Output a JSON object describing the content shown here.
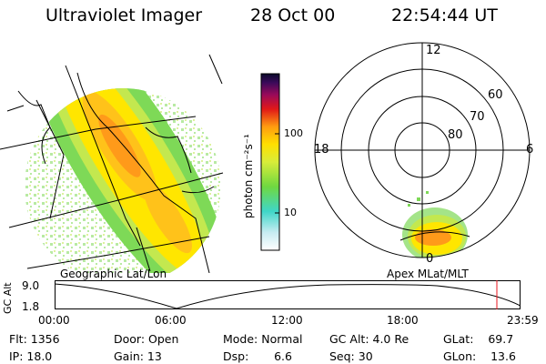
{
  "header": {
    "instrument": "Ultraviolet Imager",
    "date": "28 Oct 00",
    "time": "22:54:44 UT"
  },
  "colorbar": {
    "unit_label": "photon cm⁻²s⁻¹",
    "ticks": [
      "100",
      "10"
    ]
  },
  "maps": {
    "geo_label": "Geographic Lat/Lon",
    "apex_label": "Apex MLat/MLT",
    "polar_mlt": [
      "12",
      "18",
      "6",
      "0"
    ],
    "polar_lat": [
      "60",
      "70",
      "80"
    ]
  },
  "orbit": {
    "axis_label": "GC Alt",
    "y_ticks": [
      "9.0",
      "1.8"
    ],
    "x_ticks": [
      "00:00",
      "06:00",
      "12:00",
      "18:00",
      "23:59"
    ]
  },
  "info": {
    "flt": "Flt: 1356",
    "ip": "IP: 18.0",
    "door": "Door: Open",
    "gain": "Gain: 13",
    "mode": "Mode: Normal",
    "dsp": "Dsp:       6.6",
    "gc_alt": "GC Alt: 4.0 Re",
    "seq": "Seq: 30",
    "glat": "GLat:    69.7",
    "glon": "GLon:    13.6"
  },
  "colors": {
    "aurora_low": "#7ed957",
    "aurora_mid": "#ffe600",
    "aurora_high": "#ff9a1a",
    "marker": "#e8141c"
  }
}
